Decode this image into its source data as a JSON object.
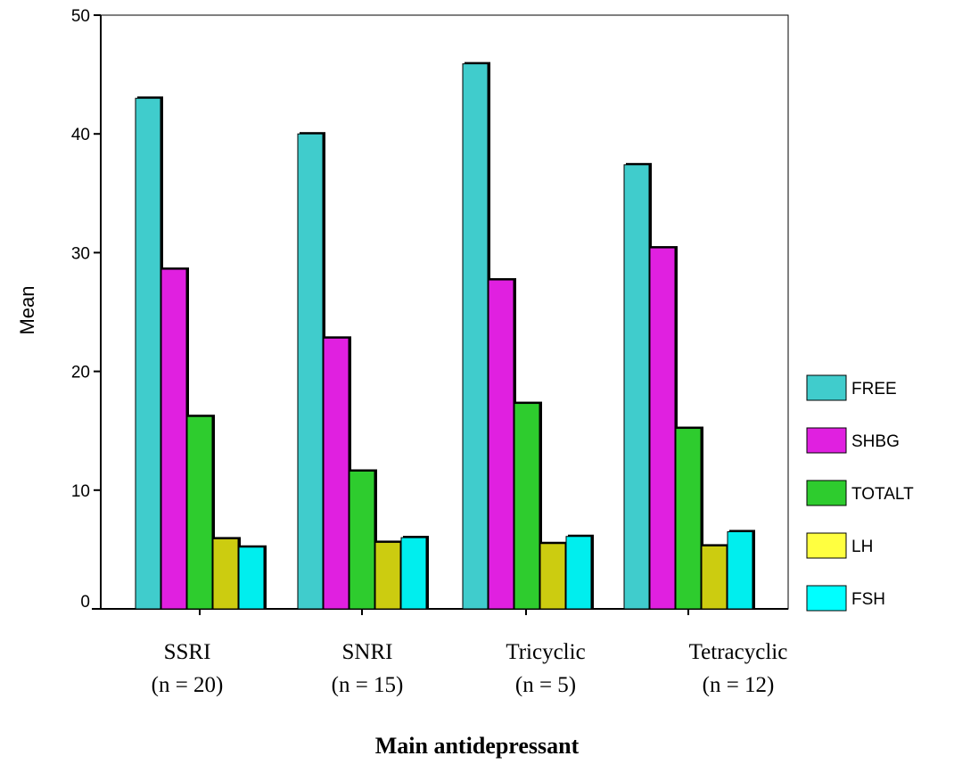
{
  "chart_data": {
    "type": "bar",
    "title": "",
    "xlabel": "Main antidepressant",
    "ylabel": "Mean",
    "ylim": [
      0,
      50
    ],
    "yticks": [
      0,
      10,
      20,
      30,
      40,
      50
    ],
    "grid": false,
    "legend_position": "right",
    "categories": [
      {
        "name": "SSRI",
        "n": "(n = 20)"
      },
      {
        "name": "SNRI",
        "n": "(n = 15)"
      },
      {
        "name": "Tricyclic",
        "n": "(n = 5)"
      },
      {
        "name": "Tetracyclic",
        "n": "(n = 12)"
      }
    ],
    "series": [
      {
        "name": "FREE",
        "color": "#40CCCC",
        "values": [
          43.0,
          40.0,
          45.9,
          37.4
        ]
      },
      {
        "name": "SHBG",
        "color": "#E020E0",
        "values": [
          28.6,
          22.8,
          27.7,
          30.4
        ]
      },
      {
        "name": "TOTALT",
        "color": "#2ECC2E",
        "values": [
          16.2,
          11.6,
          17.3,
          15.2
        ]
      },
      {
        "name": "LH",
        "color": "#CCCC10",
        "values": [
          5.9,
          5.6,
          5.5,
          5.3
        ]
      },
      {
        "name": "FSH",
        "color": "#00EEEE",
        "values": [
          5.2,
          6.0,
          6.1,
          6.5
        ]
      }
    ],
    "legend_colors": [
      "#40CCCC",
      "#E020E0",
      "#2ECC2E",
      "#FFFF40",
      "#00FFFF"
    ]
  }
}
